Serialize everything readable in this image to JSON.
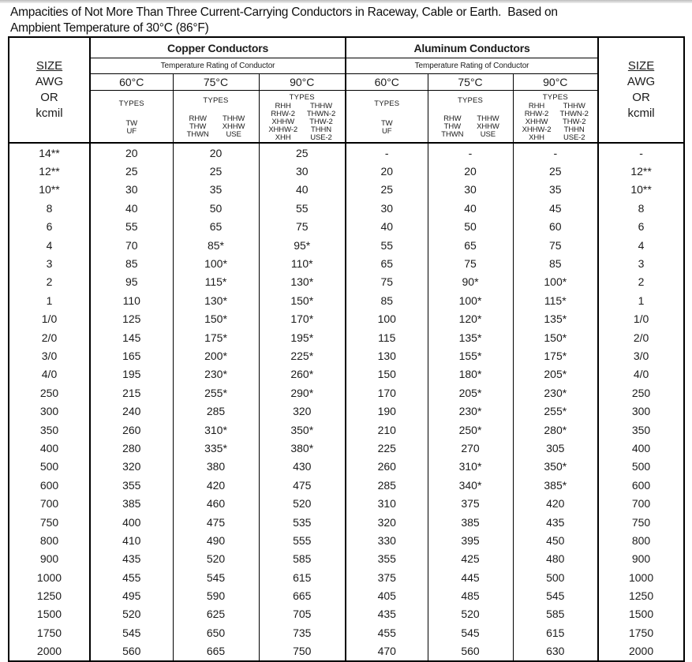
{
  "title": {
    "line1": "Ampacities of Not More Than Three Current-Carrying Conductors in Raceway, Cable or Earth.  Based on",
    "line2": "Ampbient Temperature of 30°C (86°F)"
  },
  "header": {
    "copper_title": "Copper Conductors",
    "aluminum_title": "Aluminum Conductors",
    "temp_rating_label": "Temperature Rating of Conductor",
    "temps": [
      "60°C",
      "75°C",
      "90°C"
    ],
    "size_header": {
      "size": "SIZE",
      "awg": "AWG",
      "or": "OR",
      "kcmil": "kcmil"
    },
    "types_label": "TYPES",
    "types_60": [
      "TW",
      "UF"
    ],
    "types_75_left": [
      "RHW",
      "THW",
      "THWN"
    ],
    "types_75_right": [
      "THHW",
      "XHHW",
      "USE"
    ],
    "types_90_left": [
      "RHH",
      "RHW-2",
      "XHHW",
      "XHHW-2",
      "XHH"
    ],
    "types_90_right": [
      "THHW",
      "THWN-2",
      "THW-2",
      "THHN",
      "USE-2"
    ]
  },
  "columns": [
    "SIZE AWG OR kcmil",
    "Copper 60C",
    "Copper 75C",
    "Copper 90C",
    "Aluminum 60C",
    "Aluminum 75C",
    "Aluminum 90C",
    "SIZE AWG OR kcmil"
  ],
  "rows": [
    [
      "14**",
      "20",
      "20",
      "25",
      "-",
      "-",
      "-",
      "-"
    ],
    [
      "12**",
      "25",
      "25",
      "30",
      "20",
      "20",
      "25",
      "12**"
    ],
    [
      "10**",
      "30",
      "35",
      "40",
      "25",
      "30",
      "35",
      "10**"
    ],
    [
      "8",
      "40",
      "50",
      "55",
      "30",
      "40",
      "45",
      "8"
    ],
    [
      "6",
      "55",
      "65",
      "75",
      "40",
      "50",
      "60",
      "6"
    ],
    [
      "4",
      "70",
      "85*",
      "95*",
      "55",
      "65",
      "75",
      "4"
    ],
    [
      "3",
      "85",
      "100*",
      "110*",
      "65",
      "75",
      "85",
      "3"
    ],
    [
      "2",
      "95",
      "115*",
      "130*",
      "75",
      "90*",
      "100*",
      "2"
    ],
    [
      "1",
      "110",
      "130*",
      "150*",
      "85",
      "100*",
      "115*",
      "1"
    ],
    [
      "1/0",
      "125",
      "150*",
      "170*",
      "100",
      "120*",
      "135*",
      "1/0"
    ],
    [
      "2/0",
      "145",
      "175*",
      "195*",
      "115",
      "135*",
      "150*",
      "2/0"
    ],
    [
      "3/0",
      "165",
      "200*",
      "225*",
      "130",
      "155*",
      "175*",
      "3/0"
    ],
    [
      "4/0",
      "195",
      "230*",
      "260*",
      "150",
      "180*",
      "205*",
      "4/0"
    ],
    [
      "250",
      "215",
      "255*",
      "290*",
      "170",
      "205*",
      "230*",
      "250"
    ],
    [
      "300",
      "240",
      "285",
      "320",
      "190",
      "230*",
      "255*",
      "300"
    ],
    [
      "350",
      "260",
      "310*",
      "350*",
      "210",
      "250*",
      "280*",
      "350"
    ],
    [
      "400",
      "280",
      "335*",
      "380*",
      "225",
      "270",
      "305",
      "400"
    ],
    [
      "500",
      "320",
      "380",
      "430",
      "260",
      "310*",
      "350*",
      "500"
    ],
    [
      "600",
      "355",
      "420",
      "475",
      "285",
      "340*",
      "385*",
      "600"
    ],
    [
      "700",
      "385",
      "460",
      "520",
      "310",
      "375",
      "420",
      "700"
    ],
    [
      "750",
      "400",
      "475",
      "535",
      "320",
      "385",
      "435",
      "750"
    ],
    [
      "800",
      "410",
      "490",
      "555",
      "330",
      "395",
      "450",
      "800"
    ],
    [
      "900",
      "435",
      "520",
      "585",
      "355",
      "425",
      "480",
      "900"
    ],
    [
      "1000",
      "455",
      "545",
      "615",
      "375",
      "445",
      "500",
      "1000"
    ],
    [
      "1250",
      "495",
      "590",
      "665",
      "405",
      "485",
      "545",
      "1250"
    ],
    [
      "1500",
      "520",
      "625",
      "705",
      "435",
      "520",
      "585",
      "1500"
    ],
    [
      "1750",
      "545",
      "650",
      "735",
      "455",
      "545",
      "615",
      "1750"
    ],
    [
      "2000",
      "560",
      "665",
      "750",
      "470",
      "560",
      "630",
      "2000"
    ]
  ]
}
